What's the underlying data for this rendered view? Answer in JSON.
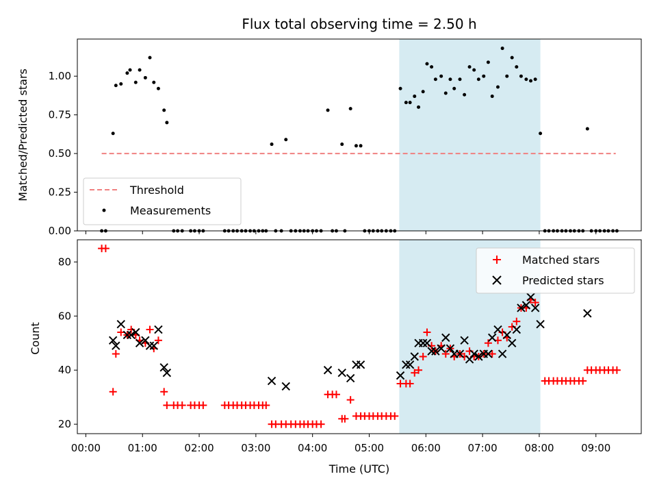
{
  "chart_data": {
    "title": "Flux total observing time = 2.50 h",
    "xlabel": "Time (UTC)",
    "xlim": [
      -0.15,
      9.8
    ],
    "xticks": [
      {
        "v": 0,
        "label": "00:00"
      },
      {
        "v": 1,
        "label": "01:00"
      },
      {
        "v": 2,
        "label": "02:00"
      },
      {
        "v": 3,
        "label": "03:00"
      },
      {
        "v": 4,
        "label": "04:00"
      },
      {
        "v": 5,
        "label": "05:00"
      },
      {
        "v": 6,
        "label": "06:00"
      },
      {
        "v": 7,
        "label": "07:00"
      },
      {
        "v": 8,
        "label": "08:00"
      },
      {
        "v": 9,
        "label": "09:00"
      }
    ],
    "highlight": {
      "x0": 5.53,
      "x1": 8.02,
      "color": "#add8e6"
    },
    "top": {
      "type": "scatter",
      "ylabel": "Matched/Predicted stars",
      "ylim": [
        0,
        1.24
      ],
      "yticks": [
        "0.00",
        "0.25",
        "0.50",
        "0.75",
        "1.00"
      ],
      "threshold": {
        "y": 0.5,
        "x0": 0.28,
        "x1": 9.35,
        "label": "Threshold",
        "color": "#f08080"
      },
      "measurements_label": "Measurements",
      "points": [
        [
          0.28,
          0
        ],
        [
          0.35,
          0
        ],
        [
          0.48,
          0.63
        ],
        [
          0.53,
          0.94
        ],
        [
          0.62,
          0.95
        ],
        [
          0.73,
          1.02
        ],
        [
          0.78,
          1.04
        ],
        [
          0.88,
          0.96
        ],
        [
          0.95,
          1.04
        ],
        [
          1.05,
          0.99
        ],
        [
          1.13,
          1.12
        ],
        [
          1.2,
          0.96
        ],
        [
          1.28,
          0.92
        ],
        [
          1.38,
          0.78
        ],
        [
          1.43,
          0.7
        ],
        [
          1.55,
          0
        ],
        [
          1.62,
          0
        ],
        [
          1.7,
          0
        ],
        [
          1.85,
          0
        ],
        [
          1.92,
          0
        ],
        [
          2.0,
          0
        ],
        [
          2.07,
          0
        ],
        [
          2.45,
          0
        ],
        [
          2.52,
          0
        ],
        [
          2.6,
          0
        ],
        [
          2.67,
          0
        ],
        [
          2.75,
          0
        ],
        [
          2.82,
          0
        ],
        [
          2.9,
          0
        ],
        [
          2.97,
          0
        ],
        [
          3.05,
          0
        ],
        [
          3.12,
          0
        ],
        [
          3.18,
          0
        ],
        [
          3.28,
          0.56
        ],
        [
          3.35,
          0
        ],
        [
          3.45,
          0
        ],
        [
          3.53,
          0.59
        ],
        [
          3.62,
          0
        ],
        [
          3.7,
          0
        ],
        [
          3.78,
          0
        ],
        [
          3.85,
          0
        ],
        [
          3.92,
          0
        ],
        [
          4.0,
          0
        ],
        [
          4.07,
          0
        ],
        [
          4.15,
          0
        ],
        [
          4.27,
          0.78
        ],
        [
          4.35,
          0
        ],
        [
          4.42,
          0
        ],
        [
          4.52,
          0.56
        ],
        [
          4.57,
          0
        ],
        [
          4.67,
          0.79
        ],
        [
          4.77,
          0.55
        ],
        [
          4.85,
          0.55
        ],
        [
          4.92,
          0
        ],
        [
          5.0,
          0
        ],
        [
          5.07,
          0
        ],
        [
          5.15,
          0
        ],
        [
          5.22,
          0
        ],
        [
          5.3,
          0
        ],
        [
          5.38,
          0
        ],
        [
          5.45,
          0
        ],
        [
          5.55,
          0.92
        ],
        [
          5.65,
          0.83
        ],
        [
          5.72,
          0.83
        ],
        [
          5.8,
          0.87
        ],
        [
          5.87,
          0.8
        ],
        [
          5.95,
          0.9
        ],
        [
          6.02,
          1.08
        ],
        [
          6.1,
          1.06
        ],
        [
          6.17,
          0.98
        ],
        [
          6.27,
          1.0
        ],
        [
          6.35,
          0.89
        ],
        [
          6.43,
          0.98
        ],
        [
          6.5,
          0.92
        ],
        [
          6.6,
          0.98
        ],
        [
          6.68,
          0.88
        ],
        [
          6.77,
          1.06
        ],
        [
          6.85,
          1.04
        ],
        [
          6.93,
          0.98
        ],
        [
          7.02,
          1.0
        ],
        [
          7.1,
          1.09
        ],
        [
          7.17,
          0.87
        ],
        [
          7.27,
          0.93
        ],
        [
          7.35,
          1.18
        ],
        [
          7.43,
          1.0
        ],
        [
          7.52,
          1.12
        ],
        [
          7.6,
          1.06
        ],
        [
          7.68,
          1.0
        ],
        [
          7.77,
          0.98
        ],
        [
          7.85,
          0.97
        ],
        [
          7.93,
          0.98
        ],
        [
          8.02,
          0.63
        ],
        [
          8.1,
          0
        ],
        [
          8.17,
          0
        ],
        [
          8.25,
          0
        ],
        [
          8.32,
          0
        ],
        [
          8.4,
          0
        ],
        [
          8.47,
          0
        ],
        [
          8.55,
          0
        ],
        [
          8.62,
          0
        ],
        [
          8.7,
          0
        ],
        [
          8.77,
          0
        ],
        [
          8.85,
          0.66
        ],
        [
          8.92,
          0
        ],
        [
          9.0,
          0
        ],
        [
          9.07,
          0
        ],
        [
          9.15,
          0
        ],
        [
          9.22,
          0
        ],
        [
          9.3,
          0
        ],
        [
          9.37,
          0
        ]
      ]
    },
    "bottom": {
      "type": "scatter",
      "ylabel": "Count",
      "ylim": [
        16.5,
        88.2
      ],
      "yticks": [
        {
          "v": 20,
          "label": "20"
        },
        {
          "v": 40,
          "label": "40"
        },
        {
          "v": 60,
          "label": "60"
        },
        {
          "v": 80,
          "label": "80"
        }
      ],
      "series": [
        {
          "name": "Matched stars",
          "marker": "plus",
          "color": "#ff0000",
          "points": [
            [
              0.28,
              85
            ],
            [
              0.35,
              85
            ],
            [
              0.48,
              32
            ],
            [
              0.53,
              46
            ],
            [
              0.62,
              54
            ],
            [
              0.73,
              53
            ],
            [
              0.8,
              55
            ],
            [
              0.88,
              53
            ],
            [
              0.95,
              51
            ],
            [
              1.05,
              50
            ],
            [
              1.13,
              55
            ],
            [
              1.2,
              48
            ],
            [
              1.28,
              51
            ],
            [
              1.38,
              32
            ],
            [
              1.43,
              27
            ],
            [
              1.55,
              27
            ],
            [
              1.62,
              27
            ],
            [
              1.7,
              27
            ],
            [
              1.85,
              27
            ],
            [
              1.92,
              27
            ],
            [
              2.0,
              27
            ],
            [
              2.07,
              27
            ],
            [
              2.45,
              27
            ],
            [
              2.52,
              27
            ],
            [
              2.6,
              27
            ],
            [
              2.67,
              27
            ],
            [
              2.75,
              27
            ],
            [
              2.82,
              27
            ],
            [
              2.9,
              27
            ],
            [
              2.97,
              27
            ],
            [
              3.05,
              27
            ],
            [
              3.12,
              27
            ],
            [
              3.18,
              27
            ],
            [
              3.28,
              20
            ],
            [
              3.35,
              20
            ],
            [
              3.45,
              20
            ],
            [
              3.53,
              20
            ],
            [
              3.62,
              20
            ],
            [
              3.7,
              20
            ],
            [
              3.78,
              20
            ],
            [
              3.85,
              20
            ],
            [
              3.92,
              20
            ],
            [
              4.0,
              20
            ],
            [
              4.07,
              20
            ],
            [
              4.15,
              20
            ],
            [
              4.27,
              31
            ],
            [
              4.35,
              31
            ],
            [
              4.42,
              31
            ],
            [
              4.52,
              22
            ],
            [
              4.57,
              22
            ],
            [
              4.67,
              29
            ],
            [
              4.77,
              23
            ],
            [
              4.85,
              23
            ],
            [
              4.92,
              23
            ],
            [
              5.0,
              23
            ],
            [
              5.07,
              23
            ],
            [
              5.15,
              23
            ],
            [
              5.22,
              23
            ],
            [
              5.3,
              23
            ],
            [
              5.38,
              23
            ],
            [
              5.45,
              23
            ],
            [
              5.55,
              35
            ],
            [
              5.65,
              35
            ],
            [
              5.72,
              35
            ],
            [
              5.8,
              39
            ],
            [
              5.87,
              40
            ],
            [
              5.95,
              45
            ],
            [
              6.02,
              54
            ],
            [
              6.1,
              49
            ],
            [
              6.17,
              47
            ],
            [
              6.27,
              49
            ],
            [
              6.35,
              46
            ],
            [
              6.43,
              48
            ],
            [
              6.5,
              45
            ],
            [
              6.6,
              46
            ],
            [
              6.68,
              45
            ],
            [
              6.77,
              47
            ],
            [
              6.85,
              45
            ],
            [
              6.93,
              45
            ],
            [
              7.02,
              46
            ],
            [
              7.1,
              50
            ],
            [
              7.17,
              46
            ],
            [
              7.27,
              51
            ],
            [
              7.35,
              54
            ],
            [
              7.43,
              52
            ],
            [
              7.52,
              56
            ],
            [
              7.6,
              58
            ],
            [
              7.68,
              63
            ],
            [
              7.77,
              63
            ],
            [
              7.85,
              66
            ],
            [
              7.93,
              65
            ],
            [
              8.1,
              36
            ],
            [
              8.17,
              36
            ],
            [
              8.25,
              36
            ],
            [
              8.32,
              36
            ],
            [
              8.4,
              36
            ],
            [
              8.47,
              36
            ],
            [
              8.55,
              36
            ],
            [
              8.62,
              36
            ],
            [
              8.7,
              36
            ],
            [
              8.77,
              36
            ],
            [
              8.85,
              40
            ],
            [
              8.92,
              40
            ],
            [
              9.0,
              40
            ],
            [
              9.07,
              40
            ],
            [
              9.15,
              40
            ],
            [
              9.22,
              40
            ],
            [
              9.3,
              40
            ],
            [
              9.37,
              40
            ]
          ]
        },
        {
          "name": "Predicted stars",
          "marker": "x",
          "color": "#000000",
          "points": [
            [
              0.48,
              51
            ],
            [
              0.53,
              49
            ],
            [
              0.62,
              57
            ],
            [
              0.73,
              53
            ],
            [
              0.8,
              53
            ],
            [
              0.88,
              54
            ],
            [
              0.95,
              50
            ],
            [
              1.05,
              51
            ],
            [
              1.13,
              49
            ],
            [
              1.2,
              49
            ],
            [
              1.28,
              55
            ],
            [
              1.38,
              41
            ],
            [
              1.43,
              39
            ],
            [
              3.28,
              36
            ],
            [
              3.53,
              34
            ],
            [
              4.27,
              40
            ],
            [
              4.52,
              39
            ],
            [
              4.67,
              37
            ],
            [
              4.77,
              42
            ],
            [
              4.85,
              42
            ],
            [
              5.55,
              38
            ],
            [
              5.65,
              42
            ],
            [
              5.72,
              42
            ],
            [
              5.8,
              45
            ],
            [
              5.87,
              50
            ],
            [
              5.95,
              50
            ],
            [
              6.02,
              50
            ],
            [
              6.1,
              47
            ],
            [
              6.17,
              47
            ],
            [
              6.27,
              48
            ],
            [
              6.35,
              52
            ],
            [
              6.43,
              48
            ],
            [
              6.5,
              46
            ],
            [
              6.6,
              46
            ],
            [
              6.68,
              51
            ],
            [
              6.77,
              44
            ],
            [
              6.85,
              46
            ],
            [
              6.93,
              45
            ],
            [
              7.02,
              46
            ],
            [
              7.1,
              46
            ],
            [
              7.17,
              52
            ],
            [
              7.27,
              55
            ],
            [
              7.35,
              46
            ],
            [
              7.43,
              53
            ],
            [
              7.52,
              50
            ],
            [
              7.6,
              55
            ],
            [
              7.68,
              63
            ],
            [
              7.77,
              64
            ],
            [
              7.85,
              67
            ],
            [
              7.93,
              63
            ],
            [
              8.02,
              57
            ],
            [
              8.85,
              61
            ]
          ]
        }
      ]
    }
  }
}
